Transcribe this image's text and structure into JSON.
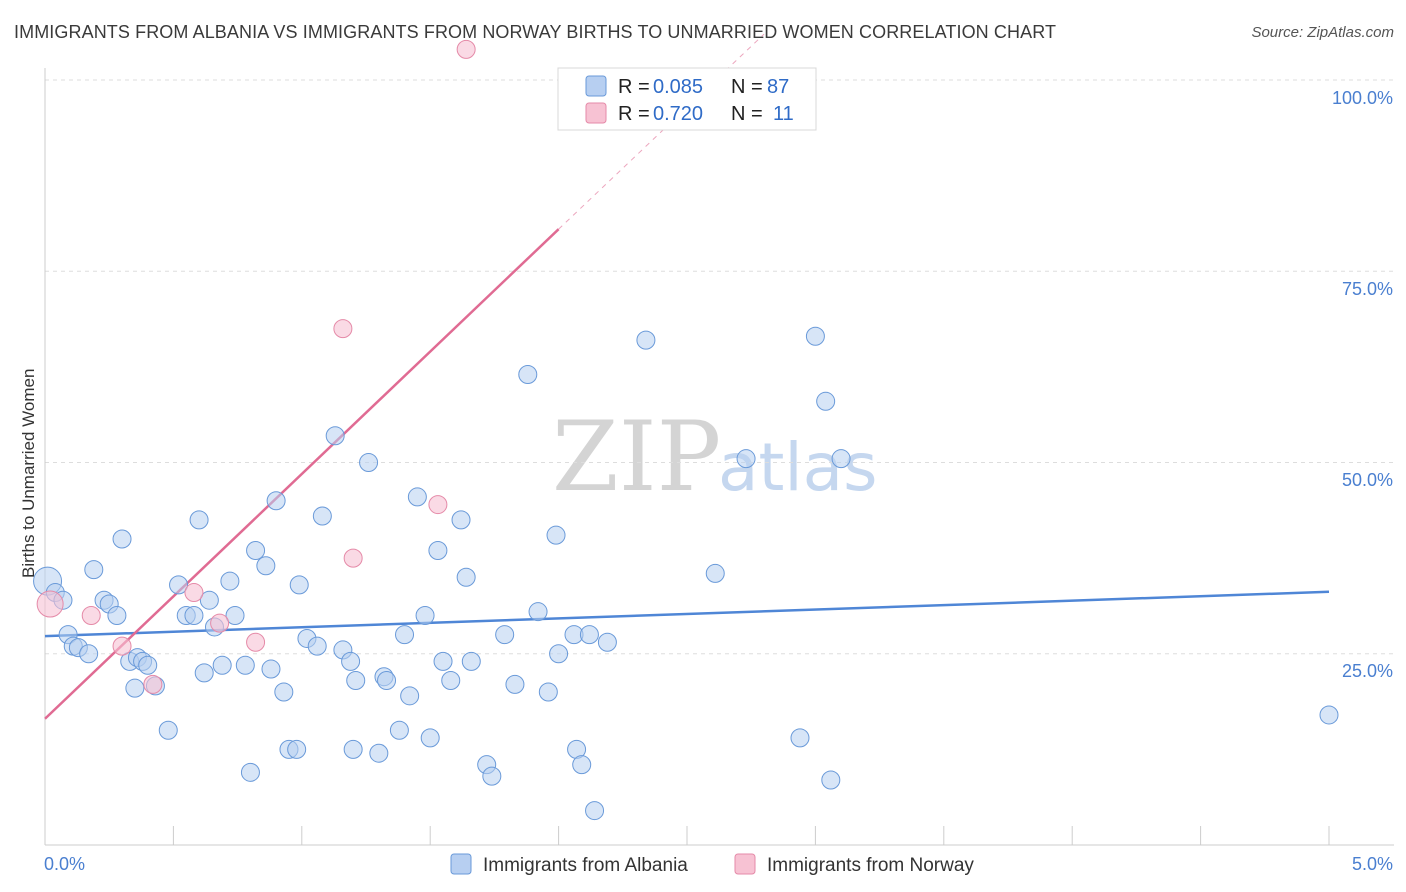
{
  "title": "IMMIGRANTS FROM ALBANIA VS IMMIGRANTS FROM NORWAY BIRTHS TO UNMARRIED WOMEN CORRELATION CHART",
  "source": "Source: ZipAtlas.com",
  "watermark": {
    "zip": "ZIP",
    "atlas": "atlas"
  },
  "legend_box": [
    {
      "r_label": "R =",
      "r_value": "0.085",
      "n_label": "N =",
      "n_value": "87"
    },
    {
      "r_label": "R =",
      "r_value": "0.720",
      "n_label": "N =",
      "n_value": "11"
    }
  ],
  "bottom_legend": [
    "Immigrants from Albania",
    "Immigrants from Norway"
  ],
  "colors": {
    "albania": "#4f86d6",
    "albania_fill": "#b7cff1",
    "norway": "#e06b93",
    "norway_fill": "#f7c2d3",
    "axis_text": "#4a7fd0",
    "grid": "#dddddd"
  },
  "chart_data": {
    "type": "scatter",
    "title": "IMMIGRANTS FROM ALBANIA VS IMMIGRANTS FROM NORWAY BIRTHS TO UNMARRIED WOMEN CORRELATION CHART",
    "xlabel": "",
    "ylabel": "Births to Unmarried Women",
    "xlim": [
      0,
      5
    ],
    "ylim": [
      0,
      100
    ],
    "x_tick_labels": [
      "0.0%",
      "5.0%"
    ],
    "y_tick_labels": [
      "25.0%",
      "50.0%",
      "75.0%",
      "100.0%"
    ],
    "y_ticks": [
      25,
      50,
      75,
      100
    ],
    "grid": true,
    "legend": "top-center",
    "series": [
      {
        "name": "Immigrants from Albania",
        "color": "#4f86d6",
        "trend": {
          "x": [
            0,
            5
          ],
          "y": [
            27.3,
            33.1
          ]
        },
        "points": [
          [
            0.01,
            34.5
          ],
          [
            0.04,
            33.0
          ],
          [
            0.07,
            32.0
          ],
          [
            0.09,
            27.5
          ],
          [
            0.11,
            26.0
          ],
          [
            0.13,
            25.8
          ],
          [
            0.17,
            25.0
          ],
          [
            0.19,
            36.0
          ],
          [
            0.23,
            32.0
          ],
          [
            0.25,
            31.5
          ],
          [
            0.28,
            30.0
          ],
          [
            0.3,
            40.0
          ],
          [
            0.33,
            24.0
          ],
          [
            0.35,
            20.5
          ],
          [
            0.36,
            24.5
          ],
          [
            0.38,
            24.0
          ],
          [
            0.4,
            23.5
          ],
          [
            0.43,
            20.8
          ],
          [
            0.48,
            15.0
          ],
          [
            0.52,
            34.0
          ],
          [
            0.55,
            30.0
          ],
          [
            0.58,
            30.0
          ],
          [
            0.6,
            42.5
          ],
          [
            0.62,
            22.5
          ],
          [
            0.64,
            32.0
          ],
          [
            0.66,
            28.5
          ],
          [
            0.69,
            23.5
          ],
          [
            0.72,
            34.5
          ],
          [
            0.74,
            30.0
          ],
          [
            0.78,
            23.5
          ],
          [
            0.8,
            9.5
          ],
          [
            0.82,
            38.5
          ],
          [
            0.86,
            36.5
          ],
          [
            0.88,
            23.0
          ],
          [
            0.9,
            45.0
          ],
          [
            0.93,
            20.0
          ],
          [
            0.95,
            12.5
          ],
          [
            0.98,
            12.5
          ],
          [
            0.99,
            34.0
          ],
          [
            1.02,
            27.0
          ],
          [
            1.06,
            26.0
          ],
          [
            1.08,
            43.0
          ],
          [
            1.13,
            53.5
          ],
          [
            1.16,
            25.5
          ],
          [
            1.19,
            24.0
          ],
          [
            1.2,
            12.5
          ],
          [
            1.21,
            21.5
          ],
          [
            1.26,
            50.0
          ],
          [
            1.3,
            12.0
          ],
          [
            1.32,
            22.0
          ],
          [
            1.33,
            21.5
          ],
          [
            1.38,
            15.0
          ],
          [
            1.4,
            27.5
          ],
          [
            1.42,
            19.5
          ],
          [
            1.45,
            45.5
          ],
          [
            1.48,
            30.0
          ],
          [
            1.5,
            14.0
          ],
          [
            1.53,
            38.5
          ],
          [
            1.55,
            24.0
          ],
          [
            1.58,
            21.5
          ],
          [
            1.62,
            42.5
          ],
          [
            1.64,
            35.0
          ],
          [
            1.66,
            24.0
          ],
          [
            1.72,
            10.5
          ],
          [
            1.74,
            9.0
          ],
          [
            1.79,
            27.5
          ],
          [
            1.83,
            21.0
          ],
          [
            1.88,
            61.5
          ],
          [
            1.92,
            30.5
          ],
          [
            1.96,
            20.0
          ],
          [
            1.99,
            40.5
          ],
          [
            2.0,
            25.0
          ],
          [
            2.06,
            27.5
          ],
          [
            2.07,
            12.5
          ],
          [
            2.09,
            10.5
          ],
          [
            2.12,
            27.5
          ],
          [
            2.14,
            4.5
          ],
          [
            2.19,
            26.5
          ],
          [
            2.34,
            66.0
          ],
          [
            2.61,
            35.5
          ],
          [
            2.73,
            50.5
          ],
          [
            2.94,
            14.0
          ],
          [
            3.0,
            66.5
          ],
          [
            3.04,
            58.0
          ],
          [
            3.06,
            8.5
          ],
          [
            3.1,
            50.5
          ],
          [
            5.0,
            17.0
          ]
        ]
      },
      {
        "name": "Immigrants from Norway",
        "color": "#e06b93",
        "trend": {
          "x": [
            0,
            2.0
          ],
          "y": [
            16.5,
            80.5
          ],
          "dashed_to": {
            "x": [
              2.0,
              2.8
            ],
            "y": [
              80.5,
              106
            ]
          }
        },
        "points": [
          [
            0.02,
            31.5
          ],
          [
            0.18,
            30.0
          ],
          [
            0.3,
            26.0
          ],
          [
            0.42,
            21.0
          ],
          [
            0.58,
            33.0
          ],
          [
            0.68,
            29.0
          ],
          [
            0.82,
            26.5
          ],
          [
            1.16,
            67.5
          ],
          [
            1.2,
            37.5
          ],
          [
            1.53,
            44.5
          ],
          [
            1.64,
            104.0
          ]
        ]
      }
    ]
  }
}
